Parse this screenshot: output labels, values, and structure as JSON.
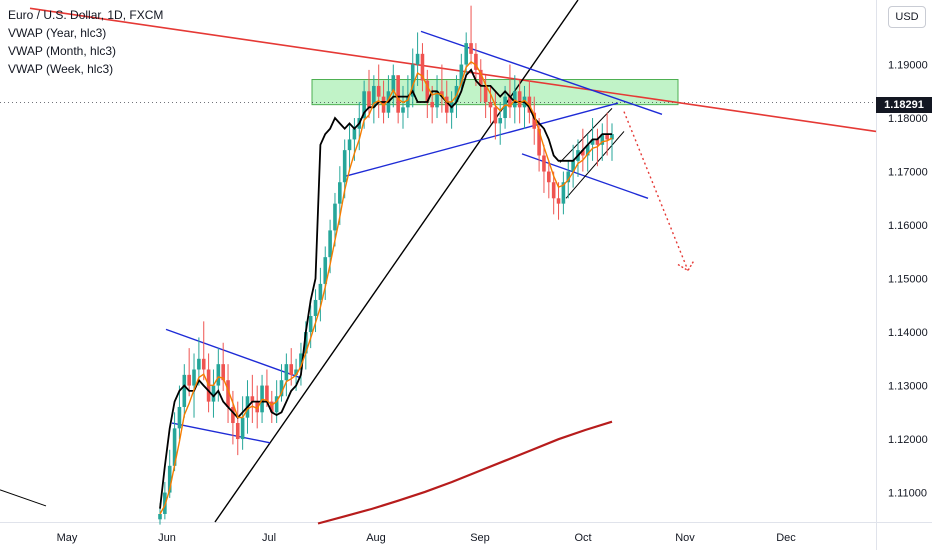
{
  "header": {
    "title": "Euro / U.S. Dollar, 1D, FXCM",
    "indicators": [
      "VWAP (Year, hlc3)",
      "VWAP (Month, hlc3)",
      "VWAP (Week, hlc3)"
    ],
    "currency": "USD",
    "last_price": "1.18291"
  },
  "chart_data": {
    "type": "candlestick",
    "symbol": "EURUSD",
    "interval": "1D",
    "x_labels": [
      "May",
      "Jun",
      "Jul",
      "Aug",
      "Sep",
      "Oct",
      "Nov",
      "Dec"
    ],
    "y_ticks": [
      "1.19000",
      "1.18000",
      "1.17000",
      "1.16000",
      "1.15000",
      "1.14000",
      "1.13000",
      "1.12000",
      "1.11000"
    ],
    "ylim": [
      1.1045,
      1.2015
    ],
    "last_price": 1.18291,
    "candles_hlc": [
      [
        1.108,
        1.104,
        1.106
      ],
      [
        1.112,
        1.105,
        1.11
      ],
      [
        1.118,
        1.109,
        1.115
      ],
      [
        1.125,
        1.114,
        1.122
      ],
      [
        1.13,
        1.12,
        1.126
      ],
      [
        1.134,
        1.124,
        1.132
      ],
      [
        1.137,
        1.128,
        1.13
      ],
      [
        1.136,
        1.124,
        1.133
      ],
      [
        1.139,
        1.13,
        1.135
      ],
      [
        1.142,
        1.131,
        1.133
      ],
      [
        1.136,
        1.125,
        1.127
      ],
      [
        1.133,
        1.124,
        1.13
      ],
      [
        1.137,
        1.127,
        1.134
      ],
      [
        1.138,
        1.129,
        1.131
      ],
      [
        1.134,
        1.123,
        1.126
      ],
      [
        1.129,
        1.119,
        1.123
      ],
      [
        1.127,
        1.117,
        1.12
      ],
      [
        1.128,
        1.118,
        1.124
      ],
      [
        1.131,
        1.121,
        1.128
      ],
      [
        1.132,
        1.123,
        1.127
      ],
      [
        1.13,
        1.122,
        1.125
      ],
      [
        1.132,
        1.123,
        1.13
      ],
      [
        1.133,
        1.126,
        1.127
      ],
      [
        1.129,
        1.123,
        1.125
      ],
      [
        1.131,
        1.123,
        1.128
      ],
      [
        1.134,
        1.127,
        1.131
      ],
      [
        1.136,
        1.128,
        1.134
      ],
      [
        1.137,
        1.13,
        1.132
      ],
      [
        1.135,
        1.129,
        1.133
      ],
      [
        1.138,
        1.13,
        1.136
      ],
      [
        1.142,
        1.133,
        1.14
      ],
      [
        1.145,
        1.137,
        1.143
      ],
      [
        1.148,
        1.14,
        1.146
      ],
      [
        1.152,
        1.142,
        1.149
      ],
      [
        1.156,
        1.146,
        1.154
      ],
      [
        1.161,
        1.151,
        1.159
      ],
      [
        1.166,
        1.156,
        1.164
      ],
      [
        1.171,
        1.16,
        1.168
      ],
      [
        1.176,
        1.165,
        1.174
      ],
      [
        1.179,
        1.17,
        1.176
      ],
      [
        1.18,
        1.172,
        1.178
      ],
      [
        1.183,
        1.174,
        1.18
      ],
      [
        1.187,
        1.178,
        1.185
      ],
      [
        1.189,
        1.18,
        1.182
      ],
      [
        1.188,
        1.179,
        1.186
      ],
      [
        1.19,
        1.18,
        1.184
      ],
      [
        1.187,
        1.179,
        1.181
      ],
      [
        1.188,
        1.18,
        1.185
      ],
      [
        1.19,
        1.182,
        1.188
      ],
      [
        1.188,
        1.179,
        1.181
      ],
      [
        1.186,
        1.178,
        1.182
      ],
      [
        1.188,
        1.18,
        1.184
      ],
      [
        1.193,
        1.182,
        1.19
      ],
      [
        1.196,
        1.186,
        1.192
      ],
      [
        1.194,
        1.185,
        1.187
      ],
      [
        1.189,
        1.18,
        1.183
      ],
      [
        1.186,
        1.179,
        1.182
      ],
      [
        1.188,
        1.18,
        1.185
      ],
      [
        1.19,
        1.181,
        1.184
      ],
      [
        1.187,
        1.179,
        1.181
      ],
      [
        1.185,
        1.178,
        1.183
      ],
      [
        1.188,
        1.18,
        1.186
      ],
      [
        1.192,
        1.185,
        1.19
      ],
      [
        1.196,
        1.188,
        1.194
      ],
      [
        1.201,
        1.19,
        1.192
      ],
      [
        1.194,
        1.186,
        1.189
      ],
      [
        1.191,
        1.183,
        1.186
      ],
      [
        1.188,
        1.18,
        1.183
      ],
      [
        1.186,
        1.179,
        1.182
      ],
      [
        1.185,
        1.176,
        1.179
      ],
      [
        1.183,
        1.175,
        1.18
      ],
      [
        1.186,
        1.178,
        1.184
      ],
      [
        1.19,
        1.18,
        1.182
      ],
      [
        1.188,
        1.179,
        1.185
      ],
      [
        1.187,
        1.179,
        1.182
      ],
      [
        1.186,
        1.178,
        1.184
      ],
      [
        1.187,
        1.179,
        1.181
      ],
      [
        1.184,
        1.175,
        1.178
      ],
      [
        1.18,
        1.17,
        1.173
      ],
      [
        1.175,
        1.166,
        1.17
      ],
      [
        1.172,
        1.165,
        1.168
      ],
      [
        1.17,
        1.162,
        1.165
      ],
      [
        1.168,
        1.161,
        1.164
      ],
      [
        1.17,
        1.162,
        1.168
      ],
      [
        1.172,
        1.165,
        1.17
      ],
      [
        1.175,
        1.167,
        1.172
      ],
      [
        1.176,
        1.169,
        1.174
      ],
      [
        1.178,
        1.17,
        1.173
      ],
      [
        1.177,
        1.17,
        1.175
      ],
      [
        1.18,
        1.172,
        1.176
      ],
      [
        1.178,
        1.171,
        1.175
      ],
      [
        1.179,
        1.172,
        1.177
      ],
      [
        1.181,
        1.173,
        1.176
      ],
      [
        1.179,
        1.172,
        1.177
      ]
    ],
    "vwap_year": [
      [
        1.104,
        1.1045
      ],
      [
        1.1062,
        1.1048
      ],
      [
        1.1085,
        1.105
      ],
      [
        1.111,
        1.1054
      ],
      [
        1.1135,
        1.106
      ],
      [
        1.116,
        1.107
      ],
      [
        1.1185,
        1.1084
      ],
      [
        1.121,
        1.1098
      ],
      [
        1.1235,
        1.1112
      ],
      [
        1.126,
        1.1126
      ],
      [
        1.128,
        1.114
      ],
      [
        1.13,
        1.115
      ]
    ],
    "vwap_year_x": [
      "Jul-mid",
      "Jul-end",
      "Aug-early",
      "Aug-mid",
      "Aug-end",
      "Sep-early",
      "Sep-mid",
      "Sep-end",
      "Oct-early",
      "Oct-mid",
      "Oct-late",
      "Oct-end"
    ],
    "vwap_month": [
      1.107,
      1.115,
      1.122,
      1.127,
      1.129,
      1.13,
      1.129,
      1.129,
      1.131,
      1.13,
      1.129,
      1.128,
      1.129,
      1.127,
      1.126,
      1.125,
      1.124,
      1.125,
      1.126,
      1.127,
      1.127,
      1.127,
      1.127,
      1.125,
      1.1245,
      1.125,
      1.127,
      1.129,
      1.13,
      1.132,
      1.14,
      1.146,
      1.15,
      1.175,
      1.177,
      1.178,
      1.18,
      1.179,
      1.178,
      1.179,
      1.178,
      1.179,
      1.181,
      1.182,
      1.182,
      1.183,
      1.183,
      1.183,
      1.184,
      1.184,
      1.184,
      1.184,
      1.185,
      1.183,
      1.183,
      1.183,
      1.185,
      1.185,
      1.184,
      1.183,
      1.182,
      1.183,
      1.185,
      1.188,
      1.189,
      1.187,
      1.186,
      1.186,
      1.186,
      1.185,
      1.184,
      1.185,
      1.184,
      1.183,
      1.183,
      1.183,
      1.182,
      1.18,
      1.179,
      1.178,
      1.176,
      1.173,
      1.172,
      1.172,
      1.172,
      1.172,
      1.173,
      1.174,
      1.175,
      1.176,
      1.176,
      1.177,
      1.177,
      1.177
    ],
    "drawings": {
      "supply_zone": [
        1.1825,
        1.1872
      ],
      "forecast_target": 1.1515
    }
  }
}
